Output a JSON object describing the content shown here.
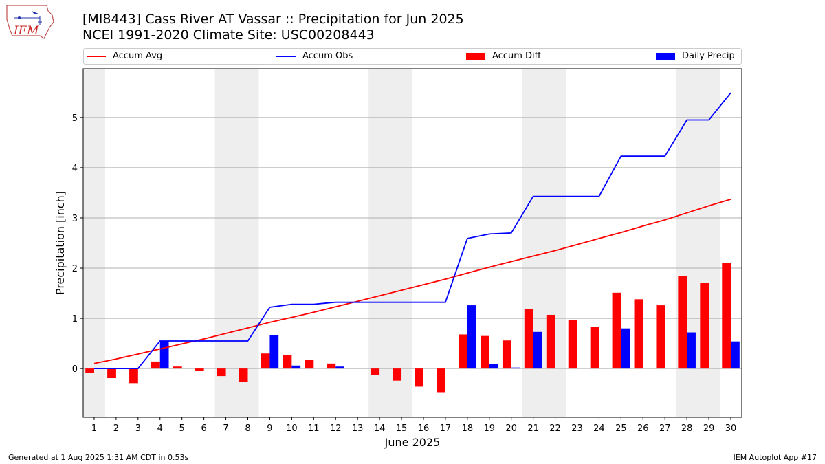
{
  "header": {
    "title_line1": "[MI8443] Cass River  AT Vassar :: Precipitation for Jun 2025",
    "title_line2": "NCEI 1991-2020 Climate Site: USC00208443"
  },
  "logo": {
    "text": "IEM"
  },
  "legend": {
    "items": [
      {
        "label": "Accum Avg",
        "color": "#ff0000",
        "kind": "line"
      },
      {
        "label": "Accum Obs",
        "color": "#0000ff",
        "kind": "line"
      },
      {
        "label": "Accum Diff",
        "color": "#ff0000",
        "kind": "box"
      },
      {
        "label": "Daily Precip",
        "color": "#0000ff",
        "kind": "box"
      }
    ]
  },
  "footer": {
    "left": "Generated at 1 Aug 2025 1:31 AM CDT in 0.53s",
    "right": "IEM Autoplot App #17"
  },
  "chart_data": {
    "type": "bar",
    "xlabel": "June 2025",
    "ylabel": "Precipitation [inch]",
    "xlim": [
      0.5,
      30.5
    ],
    "ylim": [
      -0.97,
      5.97
    ],
    "yticks": [
      0,
      1,
      2,
      3,
      4,
      5
    ],
    "grid": "horizontal",
    "legend_position": "top",
    "weekend_shading": [
      [
        0.5,
        1.5
      ],
      [
        6.5,
        8.5
      ],
      [
        13.5,
        15.5
      ],
      [
        20.5,
        22.5
      ],
      [
        27.5,
        29.5
      ]
    ],
    "days": [
      1,
      2,
      3,
      4,
      5,
      6,
      7,
      8,
      9,
      10,
      11,
      12,
      13,
      14,
      15,
      16,
      17,
      18,
      19,
      20,
      21,
      22,
      23,
      24,
      25,
      26,
      27,
      28,
      29,
      30
    ],
    "series": [
      {
        "name": "Accum Avg",
        "kind": "line",
        "color": "#ff0000",
        "values": [
          0.1,
          0.19,
          0.29,
          0.39,
          0.49,
          0.59,
          0.7,
          0.81,
          0.92,
          1.02,
          1.12,
          1.23,
          1.34,
          1.45,
          1.56,
          1.67,
          1.78,
          1.9,
          2.02,
          2.13,
          2.24,
          2.35,
          2.47,
          2.59,
          2.71,
          2.84,
          2.96,
          3.1,
          3.24,
          3.37
        ]
      },
      {
        "name": "Accum Obs",
        "kind": "line",
        "color": "#0000ff",
        "values": [
          0.0,
          0.0,
          0.0,
          0.55,
          0.55,
          0.55,
          0.55,
          0.55,
          1.22,
          1.28,
          1.28,
          1.32,
          1.32,
          1.32,
          1.32,
          1.32,
          1.32,
          2.59,
          2.68,
          2.7,
          3.43,
          3.43,
          3.43,
          3.43,
          4.23,
          4.23,
          4.23,
          4.95,
          4.95,
          5.49
        ]
      },
      {
        "name": "Accum Diff",
        "kind": "bar",
        "color": "#ff0000",
        "values": [
          -0.08,
          -0.19,
          -0.29,
          0.14,
          0.04,
          -0.05,
          -0.15,
          -0.27,
          0.3,
          0.27,
          0.17,
          0.1,
          0.0,
          -0.13,
          -0.24,
          -0.36,
          -0.47,
          0.68,
          0.65,
          0.56,
          1.19,
          1.07,
          0.96,
          0.83,
          1.51,
          1.38,
          1.26,
          1.84,
          1.7,
          2.1
        ]
      },
      {
        "name": "Daily Precip",
        "kind": "bar",
        "color": "#0000ff",
        "values": [
          0.0,
          0.0,
          0.0,
          0.55,
          0.0,
          0.0,
          0.0,
          0.0,
          0.67,
          0.06,
          0.0,
          0.04,
          0.0,
          0.0,
          0.0,
          0.0,
          0.0,
          1.26,
          0.09,
          0.02,
          0.73,
          0.0,
          0.0,
          0.0,
          0.8,
          0.0,
          0.0,
          0.72,
          0.0,
          0.54
        ]
      }
    ]
  }
}
